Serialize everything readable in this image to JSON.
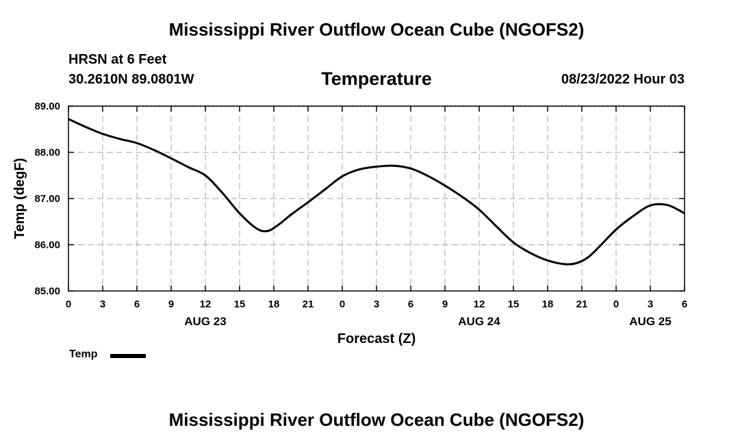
{
  "header": {
    "title": "Mississippi River Outflow Ocean Cube (NGOFS2)",
    "station": "HRSN at 6 Feet",
    "coords": "30.2610N  89.0801W",
    "datetime": "08/23/2022 Hour 03",
    "bottom_title": "Mississippi River Outflow Ocean Cube (NGOFS2)"
  },
  "chart_data": {
    "type": "line",
    "title": "Temperature",
    "xlabel": "Forecast (Z)",
    "ylabel": "Temp (degF)",
    "xlim": [
      0,
      54
    ],
    "ylim": [
      85,
      89
    ],
    "grid": true,
    "legend": "bottom-left",
    "x_ticks": [
      0,
      3,
      6,
      9,
      12,
      15,
      18,
      21,
      24,
      27,
      30,
      33,
      36,
      39,
      42,
      45,
      48,
      51,
      54
    ],
    "x_tick_labels": [
      "0",
      "3",
      "6",
      "9",
      "12",
      "15",
      "18",
      "21",
      "0",
      "3",
      "6",
      "9",
      "12",
      "15",
      "18",
      "21",
      "0",
      "3",
      "6"
    ],
    "y_ticks": [
      85,
      86,
      87,
      88,
      89
    ],
    "y_tick_labels": [
      "85.00",
      "86.00",
      "87.00",
      "88.00",
      "89.00"
    ],
    "date_labels": [
      {
        "x": 12,
        "label": "AUG 23"
      },
      {
        "x": 36,
        "label": "AUG 24"
      },
      {
        "x": 51,
        "label": "AUG 25"
      }
    ],
    "series": [
      {
        "name": "Temp",
        "color": "#000000",
        "x": [
          0,
          1.5,
          3,
          4.5,
          6,
          7.5,
          9,
          10.5,
          12,
          13.5,
          15,
          16.5,
          17.5,
          18.5,
          19.5,
          21,
          22.5,
          24,
          25.5,
          27,
          28.5,
          30,
          31.5,
          33,
          34.5,
          36,
          37.5,
          39,
          40.5,
          42,
          43.5,
          44.5,
          45.5,
          46.5,
          48,
          49.5,
          51,
          52.5,
          54
        ],
        "values": [
          88.72,
          88.55,
          88.4,
          88.29,
          88.2,
          88.05,
          87.87,
          87.68,
          87.5,
          87.12,
          86.68,
          86.35,
          86.3,
          86.45,
          86.65,
          86.92,
          87.2,
          87.48,
          87.63,
          87.69,
          87.71,
          87.65,
          87.49,
          87.28,
          87.04,
          86.76,
          86.4,
          86.05,
          85.82,
          85.66,
          85.58,
          85.6,
          85.72,
          85.95,
          86.33,
          86.62,
          86.85,
          86.86,
          86.68
        ]
      }
    ]
  }
}
